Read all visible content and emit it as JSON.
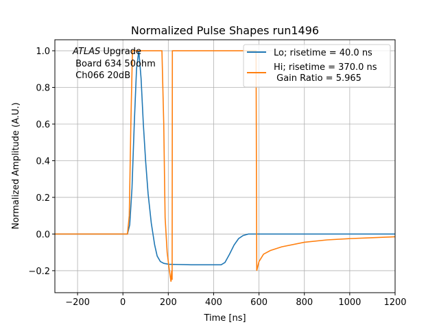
{
  "chart_data": {
    "type": "line",
    "title": "Normalized Pulse Shapes run1496",
    "xlabel": "Time [ns]",
    "ylabel": "Normalized Amplitude (A.U.)",
    "xlim": [
      -300,
      1200
    ],
    "ylim": [
      -0.32,
      1.06
    ],
    "xticks": [
      -200,
      0,
      200,
      400,
      600,
      800,
      1000,
      1200
    ],
    "yticks": [
      -0.2,
      0.0,
      0.2,
      0.4,
      0.6,
      0.8,
      1.0
    ],
    "grid": true,
    "legend_placement": "top-right",
    "annotation": {
      "italic": "ATLAS",
      "lines": [
        " Upgrade",
        " Board 634 50ohm",
        " Ch066 20dB"
      ]
    },
    "series": [
      {
        "name": "Lo; risetime = 40.0 ns",
        "color": "#1f77b4",
        "x": [
          -300,
          20,
          30,
          40,
          50,
          60,
          70,
          80,
          90,
          100,
          111,
          125,
          140,
          151,
          165,
          180,
          202,
          300,
          433,
          450,
          470,
          490,
          510,
          530,
          553,
          700,
          1200
        ],
        "y": [
          0,
          0,
          0.05,
          0.25,
          0.6,
          0.9,
          1.0,
          0.85,
          0.6,
          0.4,
          0.22,
          0.06,
          -0.06,
          -0.12,
          -0.15,
          -0.16,
          -0.165,
          -0.168,
          -0.168,
          -0.155,
          -0.11,
          -0.06,
          -0.025,
          -0.008,
          0,
          0,
          0
        ]
      },
      {
        "name": "Hi; risetime = 370.0 ns\n Gain Ratio = 5.965",
        "color": "#ff7f0e",
        "x": [
          -300,
          20,
          28,
          35,
          42,
          172,
          180,
          186,
          195,
          205,
          212,
          215,
          217,
          218,
          587,
          590,
          600,
          620,
          650,
          700,
          800,
          900,
          1000,
          1100,
          1200
        ],
        "y": [
          0,
          0,
          0.1,
          0.6,
          1.0,
          1.0,
          0.6,
          0.09,
          -0.1,
          -0.2,
          -0.26,
          -0.2,
          -0.25,
          1.0,
          1.0,
          -0.2,
          -0.15,
          -0.11,
          -0.09,
          -0.07,
          -0.045,
          -0.032,
          -0.025,
          -0.02,
          -0.015
        ]
      }
    ]
  }
}
